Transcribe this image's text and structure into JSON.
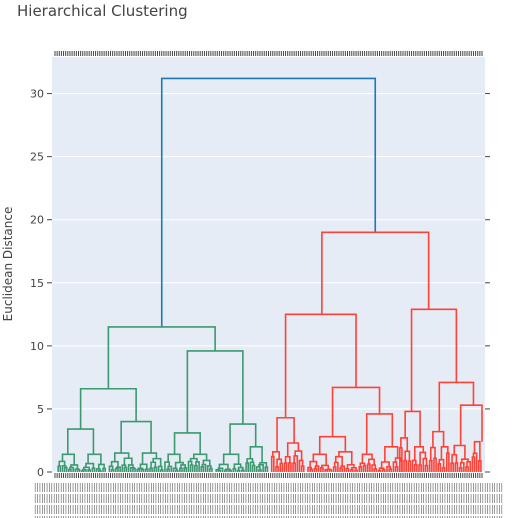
{
  "chart_data": {
    "type": "dendrogram",
    "title": "Hierarchical Clustering",
    "xlabel": "",
    "ylabel": "Euclidean Distance",
    "ylim": [
      0,
      32.9
    ],
    "yticks": [
      0,
      5,
      10,
      15,
      20,
      25,
      30
    ],
    "x_tick_labels": "dense, unreadable leaf labels (approx. 200 leaves)",
    "grid": true,
    "legend": "none",
    "colors": {
      "root": "#1f77b4",
      "cluster_1": "#3d9970",
      "cluster_2": "#ff4136",
      "plot_bg": "#e5ecf6",
      "tick_text": "#444444"
    },
    "clusters": [
      {
        "name": "cluster_1",
        "leaf_range": [
          0,
          101
        ]
      },
      {
        "name": "cluster_2",
        "leaf_range": [
          101,
          200
        ]
      }
    ],
    "merges": [
      {
        "name": "root",
        "height": 31.2,
        "left": {
          "x": 50,
          "h": 11.5
        },
        "right": {
          "x": 150,
          "h": 19.0
        },
        "color": "root"
      },
      {
        "name": "g",
        "height": 11.5,
        "left": {
          "x": 25,
          "h": 6.6
        },
        "right": {
          "x": 75,
          "h": 9.6
        },
        "color": "cluster_1"
      },
      {
        "name": "g1",
        "height": 6.6,
        "left": {
          "x": 12,
          "h": 3.4
        },
        "right": {
          "x": 38,
          "h": 4.0
        },
        "color": "cluster_1"
      },
      {
        "name": "g1a",
        "height": 3.4,
        "left": {
          "x": 6,
          "h": 1.4
        },
        "right": {
          "x": 18,
          "h": 1.4
        },
        "color": "cluster_1"
      },
      {
        "name": "g1b",
        "height": 4.0,
        "left": {
          "x": 31,
          "h": 1.5
        },
        "right": {
          "x": 45,
          "h": 1.5
        },
        "color": "cluster_1"
      },
      {
        "name": "g2",
        "height": 9.6,
        "left": {
          "x": 62,
          "h": 3.1
        },
        "right": {
          "x": 88,
          "h": 3.8
        },
        "color": "cluster_1"
      },
      {
        "name": "g2a",
        "height": 3.1,
        "left": {
          "x": 56,
          "h": 1.4
        },
        "right": {
          "x": 68,
          "h": 1.4
        },
        "color": "cluster_1"
      },
      {
        "name": "g2b",
        "height": 3.8,
        "left": {
          "x": 82,
          "h": 1.4
        },
        "right": {
          "x": 94,
          "h": 2.0
        },
        "color": "cluster_1"
      },
      {
        "name": "r",
        "height": 19.0,
        "left": {
          "x": 125,
          "h": 12.5
        },
        "right": {
          "x": 175,
          "h": 12.9
        },
        "color": "cluster_2"
      },
      {
        "name": "r1",
        "height": 12.5,
        "left": {
          "x": 108,
          "h": 4.3
        },
        "right": {
          "x": 141,
          "h": 6.7
        },
        "color": "cluster_2"
      },
      {
        "name": "r1a",
        "height": 4.3,
        "left": {
          "x": 104,
          "h": 1.6
        },
        "right": {
          "x": 112,
          "h": 2.3
        },
        "color": "cluster_2"
      },
      {
        "name": "r1b",
        "height": 6.7,
        "left": {
          "x": 130,
          "h": 2.8
        },
        "right": {
          "x": 152,
          "h": 4.6
        },
        "color": "cluster_2"
      },
      {
        "name": "r1b1",
        "height": 2.8,
        "left": {
          "x": 124,
          "h": 1.4
        },
        "right": {
          "x": 136,
          "h": 1.6
        },
        "color": "cluster_2"
      },
      {
        "name": "r1b2",
        "height": 4.6,
        "left": {
          "x": 146,
          "h": 1.4
        },
        "right": {
          "x": 158,
          "h": 2.0
        },
        "color": "cluster_2"
      },
      {
        "name": "r2",
        "height": 12.9,
        "left": {
          "x": 167,
          "h": 4.8
        },
        "right": {
          "x": 188,
          "h": 7.1
        },
        "color": "cluster_2"
      },
      {
        "name": "r2a",
        "height": 4.8,
        "left": {
          "x": 164,
          "h": 2.7
        },
        "right": {
          "x": 171,
          "h": 2.0
        },
        "color": "cluster_2"
      },
      {
        "name": "r2b",
        "height": 7.1,
        "left": {
          "x": 180,
          "h": 3.2
        },
        "right": {
          "x": 196,
          "h": 5.3
        },
        "color": "cluster_2"
      },
      {
        "name": "r2b1",
        "height": 5.3,
        "left": {
          "x": 190,
          "h": 2.1
        },
        "right": {
          "x": 200,
          "h": 2.4
        },
        "color": "cluster_2"
      }
    ],
    "low_merge_hint": "dense sub-clusters below height ~2 within each cluster; leaves at height 0"
  }
}
